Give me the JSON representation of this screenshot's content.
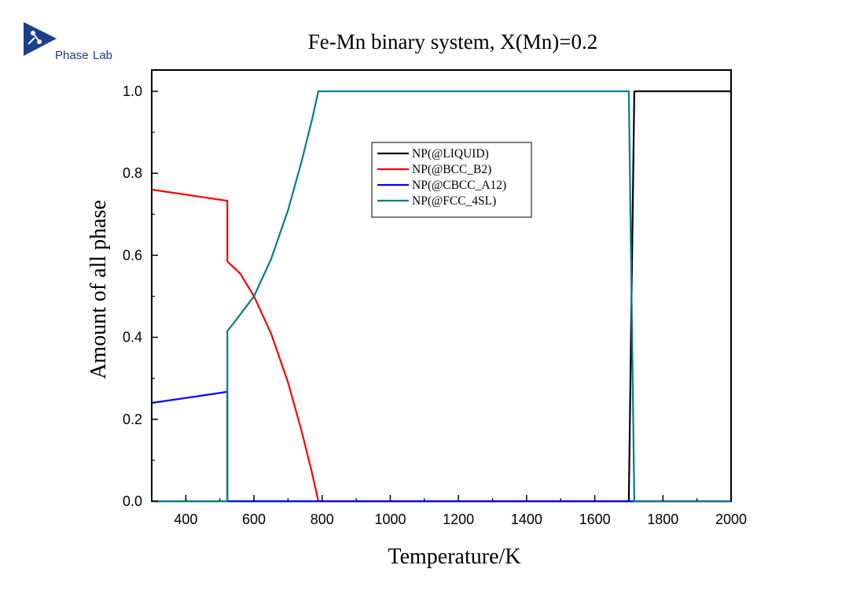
{
  "logo": {
    "text_part1": "Phase",
    "text_part2": "Lab"
  },
  "chart_data": {
    "type": "line",
    "title": "Fe-Mn binary system, X(Mn)=0.2",
    "xlabel": "Temperature/K",
    "ylabel": "Amount of all phase",
    "xlim": [
      300,
      2000
    ],
    "ylim": [
      0,
      1.05
    ],
    "xticks": [
      400,
      600,
      800,
      1000,
      1200,
      1400,
      1600,
      1800,
      2000
    ],
    "yticks": [
      0.0,
      0.2,
      0.4,
      0.6,
      0.8,
      1.0
    ],
    "xtick_labels": [
      "400",
      "600",
      "800",
      "1000",
      "1200",
      "1400",
      "1600",
      "1800",
      "2000"
    ],
    "ytick_labels": [
      "0.0",
      "0.2",
      "0.4",
      "0.6",
      "0.8",
      "1.0"
    ],
    "grid": false,
    "legend": "top-center",
    "series": [
      {
        "name": "NP(@LIQUID)",
        "color": "#000000",
        "x": [
          300,
          1700,
          1716,
          2000
        ],
        "y": [
          0,
          0,
          1.0,
          1.0
        ]
      },
      {
        "name": "NP(@BCC_B2)",
        "color": "#ff0000",
        "x": [
          300,
          400,
          520,
          522,
          522,
          560,
          600,
          650,
          700,
          740,
          770,
          789,
          2000
        ],
        "y": [
          0.76,
          0.748,
          0.733,
          0.733,
          0.585,
          0.555,
          0.5,
          0.41,
          0.29,
          0.17,
          0.07,
          0.0,
          0.0
        ]
      },
      {
        "name": "NP(@CBCC_A12)",
        "color": "#0000ff",
        "x": [
          300,
          400,
          522,
          522,
          2000
        ],
        "y": [
          0.24,
          0.252,
          0.267,
          0.0,
          0.0
        ]
      },
      {
        "name": "NP(@FCC_4SL)",
        "color": "#008080",
        "x": [
          300,
          522,
          522,
          550,
          600,
          650,
          700,
          740,
          770,
          789,
          1700,
          1716,
          2000
        ],
        "y": [
          0,
          0,
          0.415,
          0.445,
          0.5,
          0.59,
          0.71,
          0.83,
          0.93,
          1.0,
          1.0,
          0.0,
          0.0
        ]
      }
    ]
  }
}
